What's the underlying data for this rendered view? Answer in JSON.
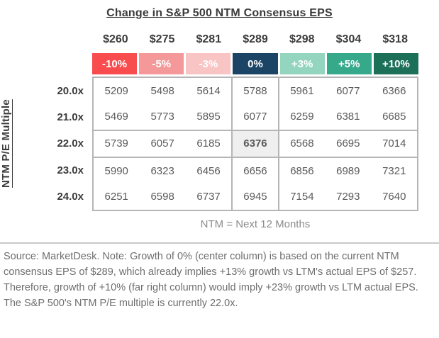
{
  "chart_data": {
    "type": "heatmap",
    "title": "Change in S&P 500 NTM Consensus EPS",
    "eps_levels": [
      "$260",
      "$275",
      "$281",
      "$289",
      "$298",
      "$304",
      "$318"
    ],
    "eps_growth": [
      "-10%",
      "-5%",
      "-3%",
      "0%",
      "+3%",
      "+5%",
      "+10%"
    ],
    "y_label": "NTM P/E Multiple",
    "pe_multiples": [
      "20.0x",
      "21.0x",
      "22.0x",
      "23.0x",
      "24.0x"
    ],
    "values": [
      [
        5209,
        5498,
        5614,
        5788,
        5961,
        6077,
        6366
      ],
      [
        5469,
        5773,
        5895,
        6077,
        6259,
        6381,
        6685
      ],
      [
        5739,
        6057,
        6185,
        6376,
        6568,
        6695,
        7014
      ],
      [
        5990,
        6323,
        6456,
        6656,
        6856,
        6989,
        7321
      ],
      [
        6251,
        6598,
        6737,
        6945,
        7154,
        7293,
        7640
      ]
    ],
    "note": "NTM = Next 12 Months",
    "highlight": {
      "row_index": 2,
      "col_index": 3,
      "row": "22.0x",
      "column_growth": "0%",
      "value": 6376
    },
    "legend_position": "none",
    "grid": true
  },
  "colors": {
    "growth_cell_backgrounds": [
      "#f94c4e",
      "#f59899",
      "#f9c4c4",
      "#1c4565",
      "#93d5bf",
      "#36a98b",
      "#1d7058"
    ],
    "growth_cell_text": "#ffffff",
    "highlight_cell_background": "#efefef",
    "grid_border": "#b5b5b5"
  },
  "footer": {
    "source_note": "Source: MarketDesk. Note: Growth of 0% (center column) is based on the current NTM consensus EPS of $289, which already implies +13% growth vs LTM's actual EPS of $257. Therefore, growth of +10% (far right column) would imply +23% growth vs LTM actual EPS. The S&P 500's NTM P/E multiple is currently 22.0x."
  }
}
